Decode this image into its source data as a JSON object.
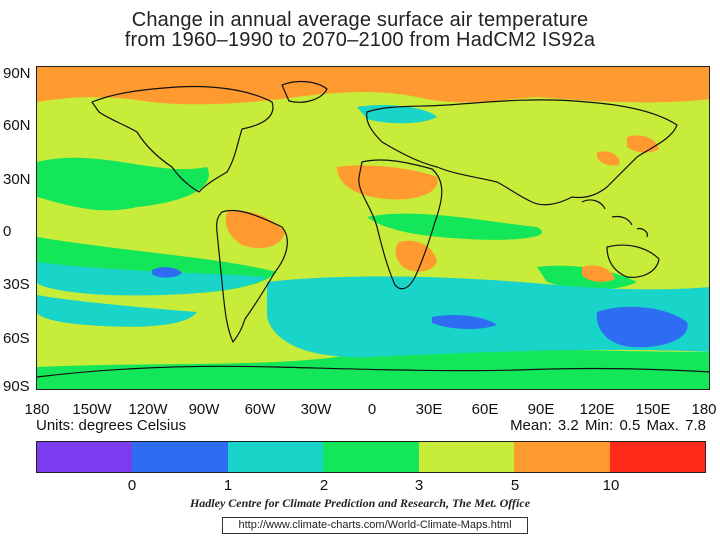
{
  "title_line1": "Change in annual average surface air temperature",
  "title_line2": "from 1960–1990 to 2070–2100 from HadCM2 IS92a",
  "lat_labels": [
    "90N",
    "60N",
    "30N",
    "0",
    "30S",
    "60S",
    "90S"
  ],
  "lon_labels": [
    "180",
    "150W",
    "120W",
    "90W",
    "60W",
    "30W",
    "0",
    "30E",
    "60E",
    "90E",
    "120E",
    "150E",
    "180"
  ],
  "units": "Units: degrees Celsius",
  "stats": "Mean:  3.2  Min:  0.5  Max.  7.8",
  "legend": {
    "colors": [
      "#7b3cf0",
      "#2e6cf2",
      "#19d4c8",
      "#14e65a",
      "#c8ec3a",
      "#ff9a30",
      "#ff2a1a"
    ],
    "ticks": [
      "0",
      "1",
      "2",
      "3",
      "5",
      "10"
    ]
  },
  "credit": "Hadley Centre for Climate Prediction and Research, The Met. Office",
  "url": "http://www.climate-charts.com/World-Climate-Maps.html",
  "map_colors": {
    "ocean_base": "#c8ec3a",
    "band_green": "#14e65a",
    "band_cyan": "#19d4c8",
    "blue": "#2e6cf2",
    "orange": "#ff9a30",
    "coast": "#111111"
  }
}
